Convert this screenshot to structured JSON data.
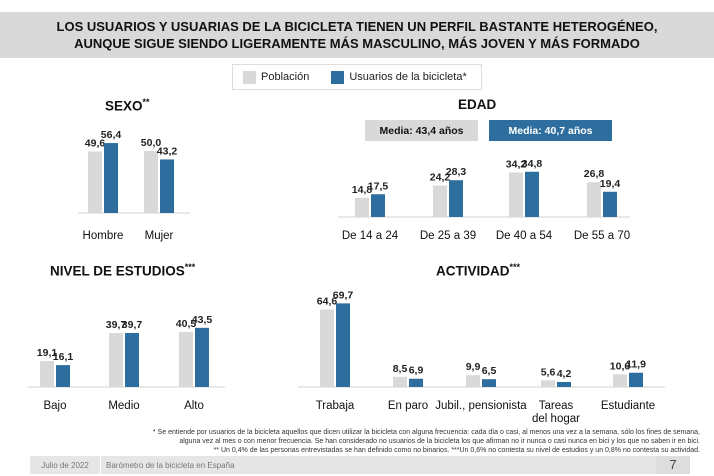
{
  "title": {
    "line1": "LOS USUARIOS Y USUARIAS DE LA BICICLETA TIENEN UN PERFIL BASTANTE HETEROGÉNEO,",
    "line2": "AUNQUE SIGUE SIENDO LIGERAMENTE MÁS MASCULINO, MÁS JOVEN Y MÁS FORMADO"
  },
  "legend": {
    "poblacion": "Población",
    "usuarios": "Usuarios de la bicicleta*"
  },
  "colors": {
    "poblacion": "#d9d9d9",
    "usuarios": "#2e6e9e"
  },
  "edad_badges": {
    "poblacion": "Media: 43,4 años",
    "usuarios": "Media: 40,7 años"
  },
  "chart_data": [
    {
      "type": "bar",
      "title": "SEXO",
      "title_mark": "**",
      "categories": [
        "Hombre",
        "Mujer"
      ],
      "series": [
        {
          "name": "Población",
          "values": [
            49.6,
            50.0
          ]
        },
        {
          "name": "Usuarios de la bicicleta*",
          "values": [
            56.4,
            43.2
          ]
        }
      ]
    },
    {
      "type": "bar",
      "title": "EDAD",
      "title_mark": "",
      "categories": [
        "De 14 a 24",
        "De 25 a 39",
        "De 40 a 54",
        "De 55 a 70"
      ],
      "series": [
        {
          "name": "Población",
          "values": [
            14.8,
            24.2,
            34.2,
            26.8
          ]
        },
        {
          "name": "Usuarios de la bicicleta*",
          "values": [
            17.5,
            28.3,
            34.8,
            19.4
          ]
        }
      ]
    },
    {
      "type": "bar",
      "title": "NIVEL DE ESTUDIOS",
      "title_mark": "***",
      "categories": [
        "Bajo",
        "Medio",
        "Alto"
      ],
      "series": [
        {
          "name": "Población",
          "values": [
            19.1,
            39.7,
            40.5
          ]
        },
        {
          "name": "Usuarios de la bicicleta*",
          "values": [
            16.1,
            39.7,
            43.5
          ]
        }
      ]
    },
    {
      "type": "bar",
      "title": "ACTIVIDAD",
      "title_mark": "***",
      "categories": [
        "Trabaja",
        "En paro",
        "Jubil., pensionista",
        "Tareas del hogar",
        "Estudiante"
      ],
      "series": [
        {
          "name": "Población",
          "values": [
            64.6,
            8.5,
            9.9,
            5.6,
            10.6
          ]
        },
        {
          "name": "Usuarios de la bicicleta*",
          "values": [
            69.7,
            6.9,
            6.5,
            4.2,
            11.9
          ]
        }
      ]
    }
  ],
  "notes": [
    "* Se entiende por usuarios de la bicicleta aquellos que dicen utilizar la bicicleta con alguna frecuencia: cada día o casi, al menos una vez a la semana, sólo los fines de semana,",
    "alguna vez al mes o con menor frecuencia. Se han considerado no usuarios de la bicicleta los que afirman no ir nunca o casi nunca en bici y los que no saben ir en bici.",
    "** Un 0,4% de las personas entrevistadas se han definido como no binarios. ***Un 0,6% no contesta su nivel de estudios y un 0,8% no contesta su actividad."
  ],
  "footer": {
    "date": "Julio de 2022",
    "source": "Barómetro de la bicicleta en España",
    "page": "7"
  }
}
